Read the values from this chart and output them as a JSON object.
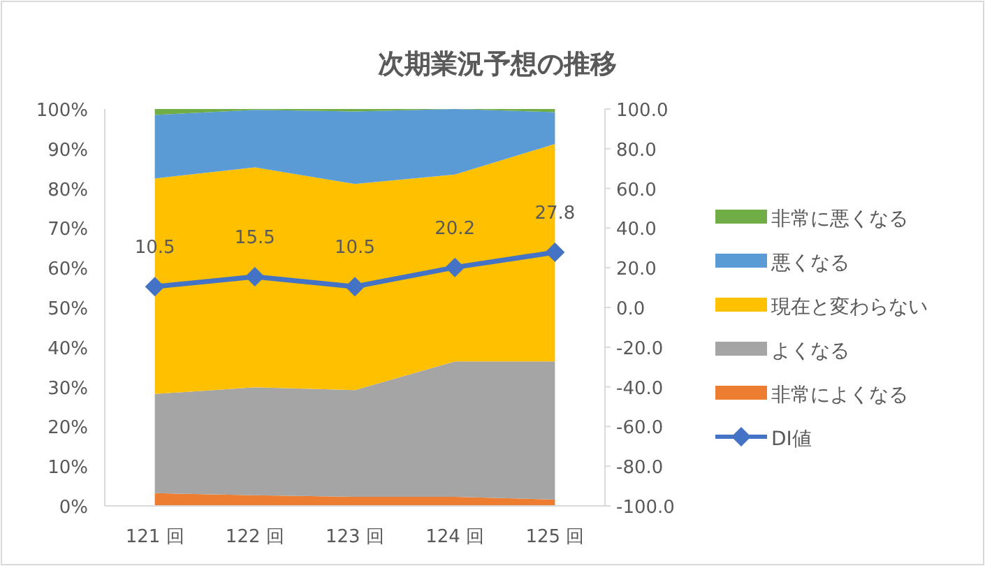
{
  "chart_data": {
    "type": "area",
    "stacked": true,
    "title": "次期業況予想の推移",
    "legend": "right",
    "grid": false,
    "categories": [
      "121 回",
      "122 回",
      "123 回",
      "124 回",
      "125 回"
    ],
    "ylim": [
      0,
      100
    ],
    "yticks": [
      {
        "value": 0,
        "label": "0%"
      },
      {
        "value": 10,
        "label": "10%"
      },
      {
        "value": 20,
        "label": "20%"
      },
      {
        "value": 30,
        "label": "30%"
      },
      {
        "value": 40,
        "label": "40%"
      },
      {
        "value": 50,
        "label": "50%"
      },
      {
        "value": 60,
        "label": "60%"
      },
      {
        "value": 70,
        "label": "70%"
      },
      {
        "value": 80,
        "label": "80%"
      },
      {
        "value": 90,
        "label": "90%"
      },
      {
        "value": 100,
        "label": "100%"
      }
    ],
    "y2lim": [
      -100,
      100
    ],
    "y2ticks": [
      {
        "value": -100,
        "label": "-100.0"
      },
      {
        "value": -80,
        "label": "-80.0"
      },
      {
        "value": -60,
        "label": "-60.0"
      },
      {
        "value": -40,
        "label": "-40.0"
      },
      {
        "value": -20,
        "label": "-20.0"
      },
      {
        "value": 0,
        "label": "0.0"
      },
      {
        "value": 20,
        "label": "20.0"
      },
      {
        "value": 40,
        "label": "40.0"
      },
      {
        "value": 60,
        "label": "60.0"
      },
      {
        "value": 80,
        "label": "80.0"
      },
      {
        "value": 100,
        "label": "100.0"
      }
    ],
    "series": [
      {
        "name": "非常によくなる",
        "color": "#ed7d31",
        "values": [
          3.2,
          2.7,
          2.3,
          2.3,
          1.6
        ]
      },
      {
        "name": "よくなる",
        "color": "#a5a5a5",
        "values": [
          25.0,
          27.2,
          26.9,
          34.1,
          34.8
        ]
      },
      {
        "name": "現在と変わらない",
        "color": "#ffc000",
        "values": [
          54.3,
          55.4,
          51.9,
          47.1,
          54.8
        ]
      },
      {
        "name": "悪くなる",
        "color": "#5b9bd5",
        "values": [
          16.0,
          14.5,
          18.3,
          16.5,
          8.0
        ]
      },
      {
        "name": "非常に悪くなる",
        "color": "#70ad47",
        "values": [
          1.5,
          0.2,
          0.6,
          0.0,
          0.8
        ]
      },
      {
        "name": "DI値",
        "type": "line",
        "axis": "y2",
        "color": "#4472c4",
        "marker": "diamond",
        "values": [
          10.5,
          15.5,
          10.5,
          20.2,
          27.8
        ],
        "value_labels": [
          "10.5",
          "15.5",
          "10.5",
          "20.2",
          "27.8"
        ]
      }
    ]
  }
}
